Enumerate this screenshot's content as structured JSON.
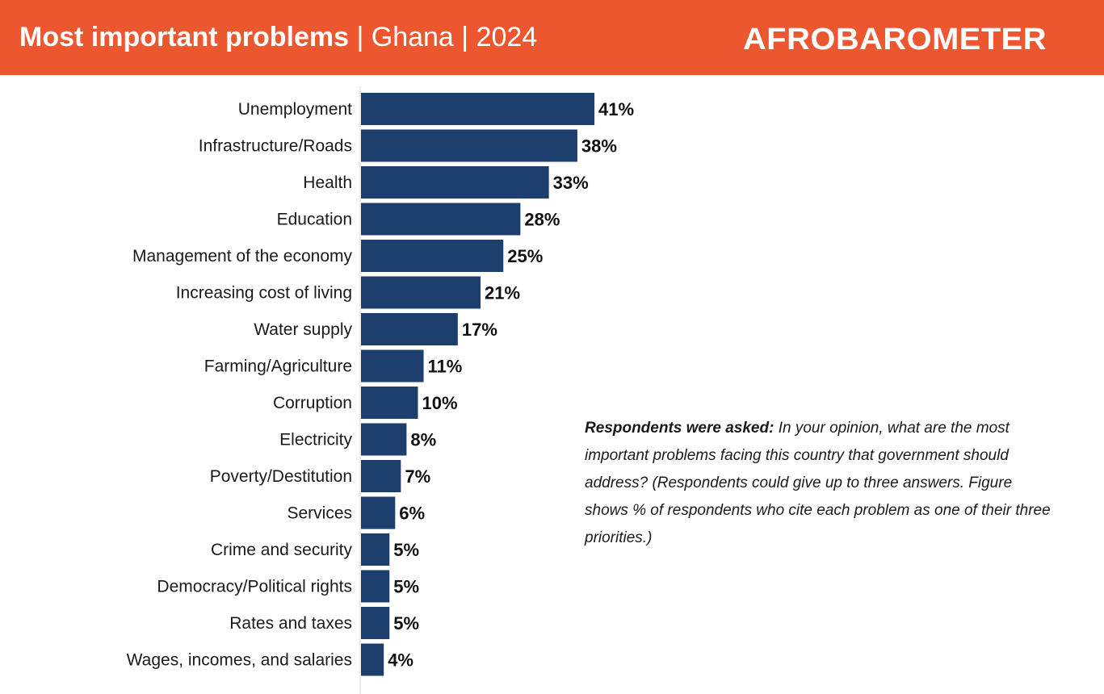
{
  "header": {
    "title_main": "Most important problems",
    "title_rest": " | Ghana | 2024",
    "logo_text": "AFROBAROMETER",
    "colors": {
      "banner": "#ec5730",
      "text": "#ffffff"
    }
  },
  "chart_data": {
    "type": "bar",
    "orientation": "horizontal",
    "categories": [
      "Unemployment",
      "Infrastructure/Roads",
      "Health",
      "Education",
      "Management of the economy",
      "Increasing cost of living",
      "Water supply",
      "Farming/Agriculture",
      "Corruption",
      "Electricity",
      "Poverty/Destitution",
      "Services",
      "Crime and security",
      "Democracy/Political rights",
      "Rates and taxes",
      "Wages, incomes, and salaries"
    ],
    "values": [
      41,
      38,
      33,
      28,
      25,
      21,
      17,
      11,
      10,
      8,
      7,
      6,
      5,
      5,
      5,
      4
    ],
    "value_labels": [
      "41%",
      "38%",
      "33%",
      "28%",
      "25%",
      "21%",
      "17%",
      "11%",
      "10%",
      "8%",
      "7%",
      "6%",
      "5%",
      "5%",
      "5%",
      "4%"
    ],
    "xlim": [
      0,
      100
    ],
    "bar_color": "#1c3f6e",
    "grid": false
  },
  "note": {
    "lead": "Respondents were asked:",
    "body": " In your opinion, what are the most important problems facing this country that government should address? (Respondents could give up to three answers. Figure shows % of respondents who cite each problem as one of their three priorities.)"
  }
}
